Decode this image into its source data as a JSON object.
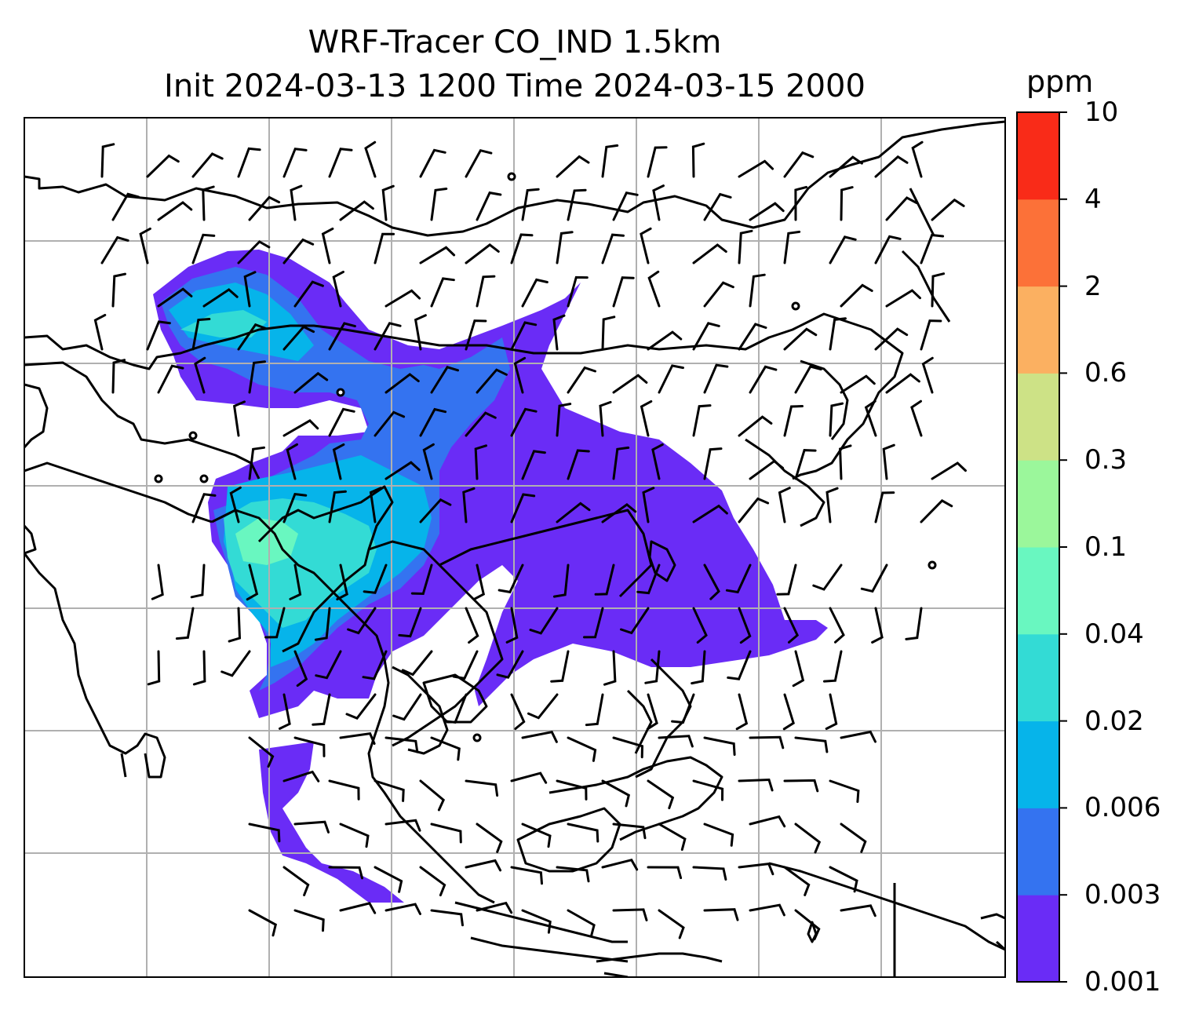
{
  "title": {
    "line1": "WRF-Tracer CO_IND 1.5km",
    "line2": "Init 2024-03-13 1200 Time 2024-03-15 2000"
  },
  "colorbar": {
    "unit": "ppm",
    "levels": [
      "0.001",
      "0.003",
      "0.006",
      "0.02",
      "0.04",
      "0.1",
      "0.3",
      "0.6",
      "2",
      "4",
      "10"
    ],
    "colors": [
      "#6a2cf6",
      "#3473f0",
      "#06b4ea",
      "#33dbd5",
      "#69f7c0",
      "#9bf79b",
      "#cde286",
      "#fbb061",
      "#fc7138",
      "#f92b18"
    ]
  },
  "map": {
    "gridlines": true,
    "coastline_color": "#000000",
    "wind_barbs": true,
    "plume_main_color": "#6a2cf6"
  }
}
